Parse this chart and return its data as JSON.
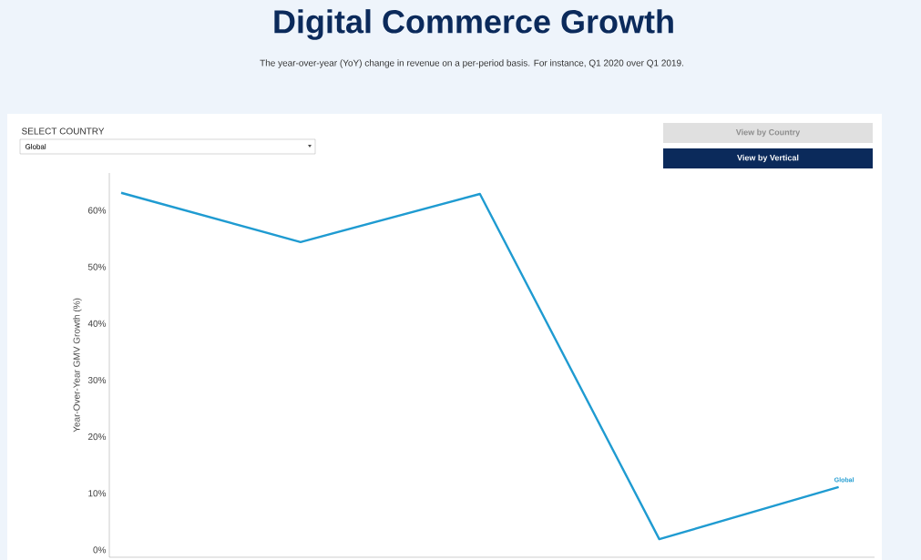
{
  "chart_data": {
    "type": "line",
    "title": "Digital Commerce Growth",
    "subtitle": "The year-over-year (YoY) change in revenue on a per-period basis. For instance, Q1 2020 over Q1 2019.",
    "ylabel": "Year-Over-Year GMV Growth (%)",
    "annotations": [
      "SELECT COUNTRY",
      "Global",
      "View by Country",
      "View by Vertical"
    ],
    "categories": [
      null,
      null,
      null,
      null,
      null
    ],
    "series": [
      {
        "name": "Global",
        "color": "#1f9bd1",
        "values": [
          63.1,
          54.4,
          62.9,
          1.9,
          11.1
        ]
      }
    ],
    "ylim": [
      -1.3,
      66.6
    ],
    "yticks": [
      {
        "value": 0,
        "label": "0%"
      },
      {
        "value": 10,
        "label": "10%"
      },
      {
        "value": 20,
        "label": "20%"
      },
      {
        "value": 30,
        "label": "30%"
      },
      {
        "value": 40,
        "label": "40%"
      },
      {
        "value": 50,
        "label": "50%"
      },
      {
        "value": 60,
        "label": "60%"
      }
    ],
    "grid": false,
    "legend": false,
    "marker": "none",
    "line_style": "solid",
    "tick_labels": "y"
  }
}
